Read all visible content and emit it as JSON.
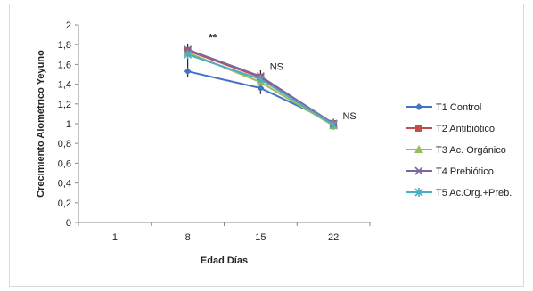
{
  "chart_data": {
    "type": "line",
    "title": "",
    "xlabel": "Edad Días",
    "ylabel": "Crecimiento Alométrico Yeyuno",
    "categories": [
      "1",
      "8",
      "15",
      "22"
    ],
    "ylim": [
      0,
      2
    ],
    "yticks": [
      "0",
      "0,2",
      "0,4",
      "0,6",
      "0,8",
      "1",
      "1,2",
      "1,4",
      "1,6",
      "1,8",
      "2"
    ],
    "grid": false,
    "legend_position": "right",
    "series": [
      {
        "name": "T1 Control",
        "color": "#4472c4",
        "marker": "diamond",
        "values": [
          null,
          1.53,
          1.36,
          1.01
        ]
      },
      {
        "name": "T2 Antibiótico",
        "color": "#c0504d",
        "marker": "square",
        "values": [
          null,
          1.74,
          1.47,
          1.0
        ]
      },
      {
        "name": "T3 Ac. Orgánico",
        "color": "#9bbb59",
        "marker": "triangle",
        "values": [
          null,
          1.72,
          1.42,
          0.98
        ]
      },
      {
        "name": "T4 Prebiótico",
        "color": "#8064a2",
        "marker": "x",
        "values": [
          null,
          1.75,
          1.48,
          1.0
        ]
      },
      {
        "name": "T5 Ac.Org.+Preb.",
        "color": "#4bacc6",
        "marker": "star",
        "values": [
          null,
          1.7,
          1.45,
          0.99
        ]
      }
    ],
    "annotations": [
      {
        "text": "**",
        "x": "8",
        "y": 1.87
      },
      {
        "text": "NS",
        "x": "15",
        "y": 1.58
      },
      {
        "text": "NS",
        "x": "22",
        "y": 1.08
      }
    ]
  }
}
